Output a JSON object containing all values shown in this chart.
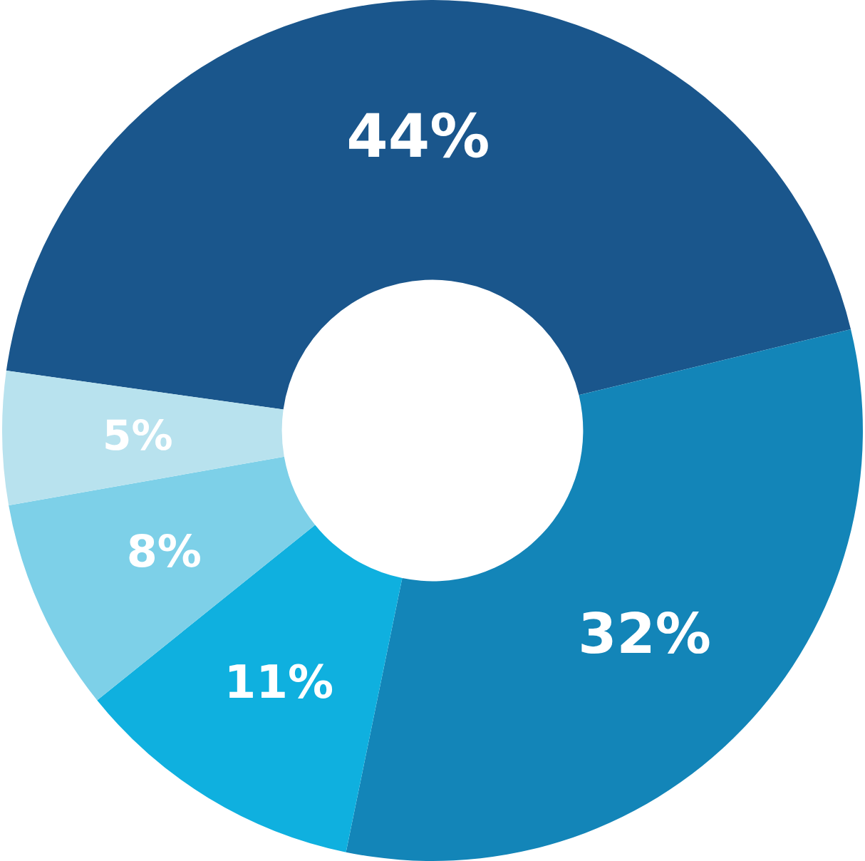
{
  "chart_data": {
    "type": "donut",
    "categories": [
      null,
      null,
      null,
      null,
      null
    ],
    "values": [
      44,
      32,
      11,
      8,
      5
    ],
    "colors": [
      "#1a568c",
      "#1385b8",
      "#0fb0df",
      "#7dd0e8",
      "#b8e2ee"
    ],
    "value_labels": [
      "44%",
      "32%",
      "11%",
      "8%",
      "5%"
    ]
  }
}
